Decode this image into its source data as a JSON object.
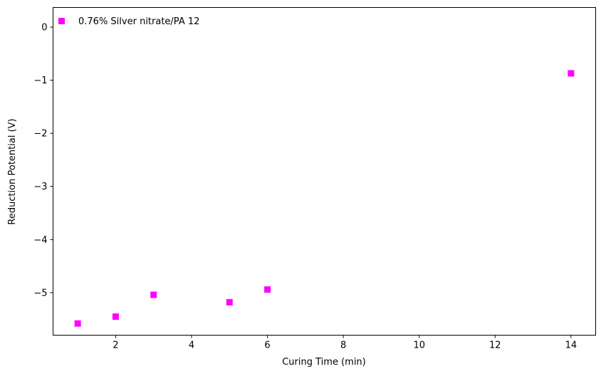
{
  "chart_data": {
    "type": "scatter",
    "title": "",
    "xlabel": "Curing Time (min)",
    "ylabel": "Reduction Potential (V)",
    "xlim": [
      0.35,
      14.65
    ],
    "ylim": [
      -5.8,
      0.37
    ],
    "xticks": [
      2,
      4,
      6,
      8,
      10,
      12,
      14
    ],
    "xtick_labels": [
      "2",
      "4",
      "6",
      "8",
      "10",
      "12",
      "14"
    ],
    "yticks": [
      0,
      -1,
      -2,
      -3,
      -4,
      -5
    ],
    "ytick_labels": [
      "0",
      "−1",
      "−2",
      "−3",
      "−4",
      "−5"
    ],
    "grid": false,
    "legend_position": "top-left",
    "series": [
      {
        "name": "0.76% Silver nitrate/PA 12",
        "color": "#ff00ff",
        "marker": "square",
        "x": [
          1,
          2,
          3,
          5,
          6,
          14
        ],
        "y": [
          -5.58,
          -5.45,
          -5.04,
          -5.18,
          -4.94,
          -0.87
        ]
      }
    ]
  }
}
